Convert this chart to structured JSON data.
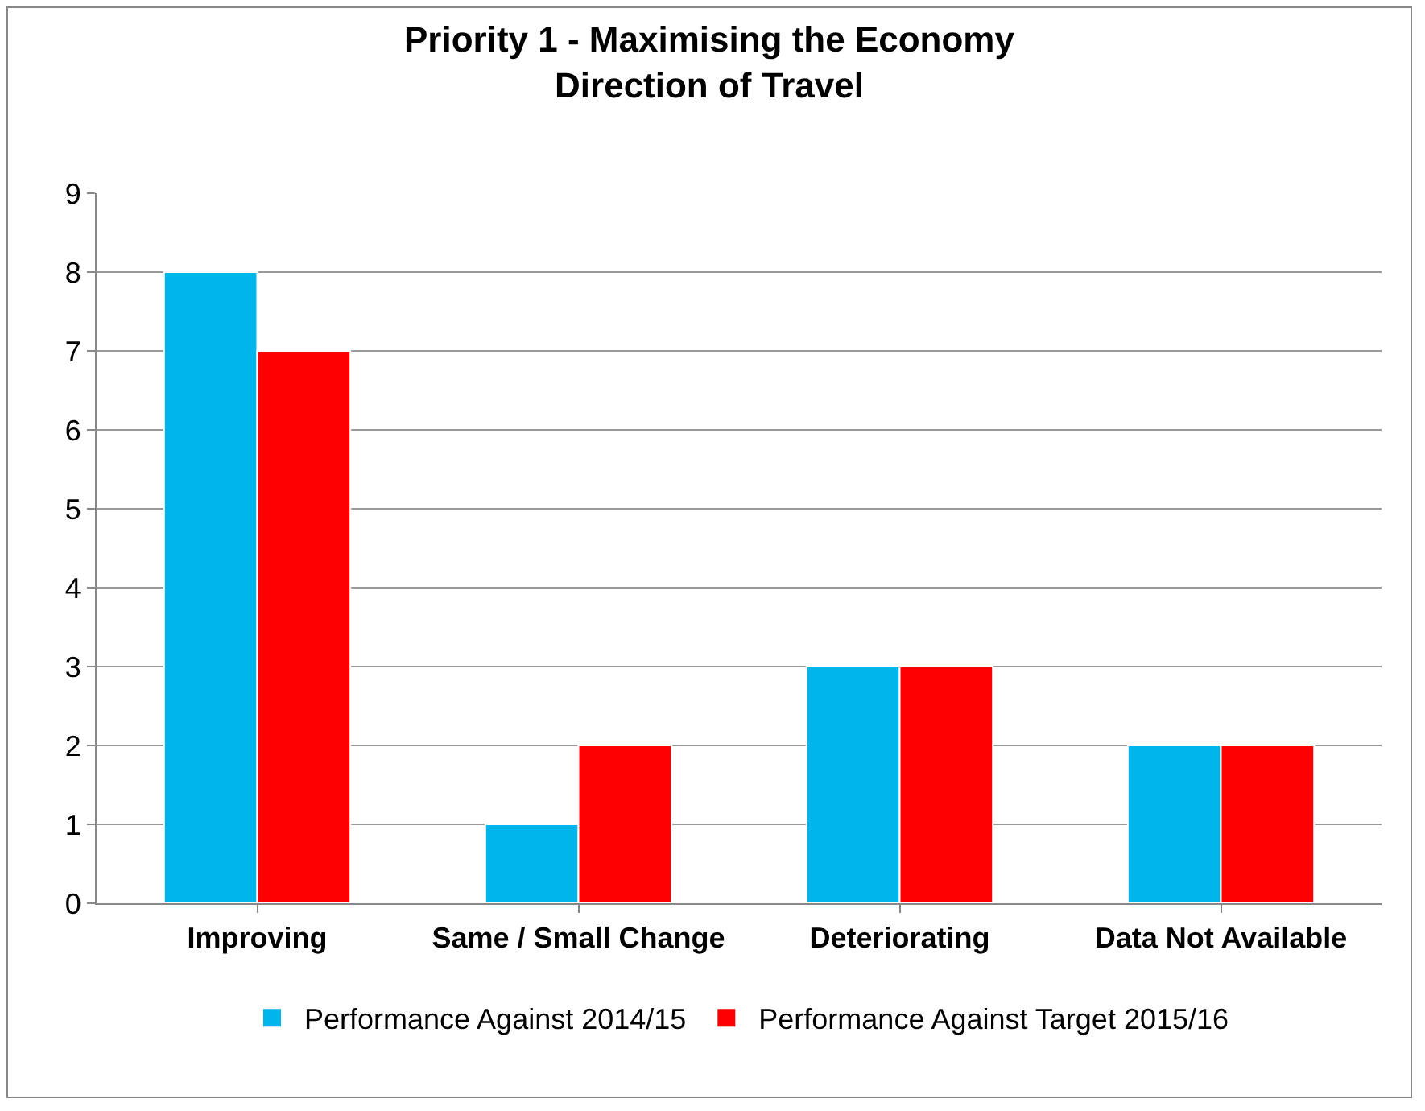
{
  "chart_data": {
    "type": "bar",
    "title": "Priority 1 - Maximising the Economy",
    "subtitle": "Direction of Travel",
    "categories": [
      "Improving",
      "Same / Small Change",
      "Deteriorating",
      "Data Not Available"
    ],
    "series": [
      {
        "name": "Performance Against 2014/15",
        "color": "#00b4ec",
        "values": [
          8,
          1,
          3,
          2
        ]
      },
      {
        "name": "Performance Against Target 2015/16",
        "color": "#ff0000",
        "values": [
          7,
          2,
          3,
          2
        ]
      }
    ],
    "ylim": [
      0,
      9
    ],
    "yticks": [
      0,
      1,
      2,
      3,
      4,
      5,
      6,
      7,
      8,
      9
    ],
    "grid": "y",
    "legend": "bottom"
  }
}
